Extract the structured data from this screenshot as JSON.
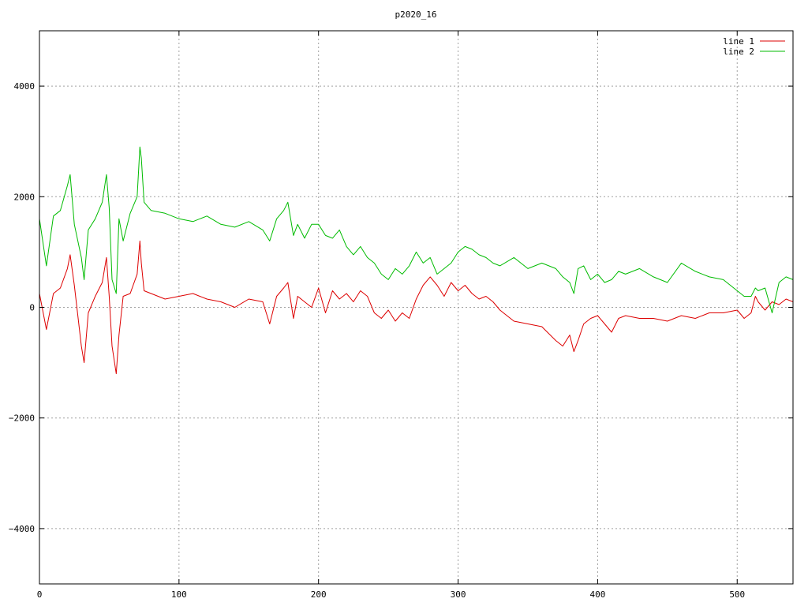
{
  "chart_data": {
    "type": "line",
    "title": "p2020_16",
    "xlabel": "",
    "ylabel": "",
    "xlim": [
      0,
      540
    ],
    "ylim": [
      -5000,
      5000
    ],
    "x_ticks": [
      0,
      100,
      200,
      300,
      400,
      500
    ],
    "y_ticks": [
      -4000,
      -2000,
      0,
      2000,
      4000
    ],
    "x_tick_labels": [
      "0",
      "100",
      "200",
      "300",
      "400",
      "500"
    ],
    "y_tick_labels": [
      "−4000",
      "−2000",
      "0",
      "2000",
      "4000"
    ],
    "grid": true,
    "legend_position": "top-right",
    "colors": {
      "line1": "#dd0000",
      "line2": "#00bb00",
      "grid": "#a0a0a0"
    },
    "x": [
      0,
      5,
      10,
      15,
      20,
      22,
      25,
      30,
      32,
      35,
      40,
      45,
      48,
      50,
      52,
      55,
      57,
      60,
      65,
      70,
      72,
      73,
      75,
      80,
      90,
      100,
      110,
      120,
      130,
      140,
      150,
      160,
      165,
      170,
      175,
      178,
      182,
      185,
      190,
      195,
      200,
      205,
      210,
      215,
      220,
      225,
      230,
      235,
      240,
      245,
      250,
      255,
      260,
      265,
      270,
      275,
      280,
      285,
      290,
      295,
      300,
      305,
      310,
      315,
      320,
      325,
      330,
      340,
      350,
      360,
      370,
      375,
      380,
      383,
      386,
      390,
      395,
      400,
      405,
      410,
      415,
      420,
      430,
      440,
      450,
      460,
      470,
      480,
      490,
      500,
      505,
      510,
      513,
      515,
      520,
      525,
      530,
      535,
      540
    ],
    "series": [
      {
        "name": "line 1",
        "color": "#dd0000",
        "values": [
          250,
          -400,
          250,
          350,
          700,
          950,
          400,
          -700,
          -1000,
          -100,
          200,
          450,
          900,
          200,
          -700,
          -1200,
          -500,
          200,
          250,
          600,
          1200,
          800,
          300,
          250,
          150,
          200,
          250,
          150,
          100,
          0,
          150,
          100,
          -300,
          200,
          350,
          450,
          -200,
          200,
          100,
          0,
          350,
          -100,
          300,
          150,
          250,
          100,
          300,
          200,
          -100,
          -200,
          -50,
          -250,
          -100,
          -200,
          150,
          400,
          550,
          400,
          200,
          450,
          300,
          400,
          250,
          150,
          200,
          100,
          -50,
          -250,
          -300,
          -350,
          -600,
          -700,
          -500,
          -800,
          -600,
          -300,
          -200,
          -150,
          -300,
          -450,
          -200,
          -150,
          -200,
          -200,
          -250,
          -150,
          -200,
          -100,
          -100,
          -50,
          -200,
          -100,
          200,
          100,
          -50,
          100,
          50,
          150,
          100
        ]
      },
      {
        "name": "line 2",
        "color": "#00bb00",
        "values": [
          1600,
          750,
          1650,
          1750,
          2200,
          2400,
          1500,
          900,
          500,
          1400,
          1600,
          1900,
          2400,
          1800,
          500,
          250,
          1600,
          1200,
          1700,
          2000,
          2900,
          2700,
          1900,
          1750,
          1700,
          1600,
          1550,
          1650,
          1500,
          1450,
          1550,
          1400,
          1200,
          1600,
          1750,
          1900,
          1300,
          1500,
          1250,
          1500,
          1500,
          1300,
          1250,
          1400,
          1100,
          950,
          1100,
          900,
          800,
          600,
          500,
          700,
          600,
          750,
          1000,
          800,
          900,
          600,
          700,
          800,
          1000,
          1100,
          1050,
          950,
          900,
          800,
          750,
          900,
          700,
          800,
          700,
          550,
          450,
          250,
          700,
          750,
          500,
          600,
          450,
          500,
          650,
          600,
          700,
          550,
          450,
          800,
          650,
          550,
          500,
          300,
          200,
          200,
          350,
          300,
          350,
          -100,
          450,
          550,
          500
        ]
      }
    ]
  }
}
